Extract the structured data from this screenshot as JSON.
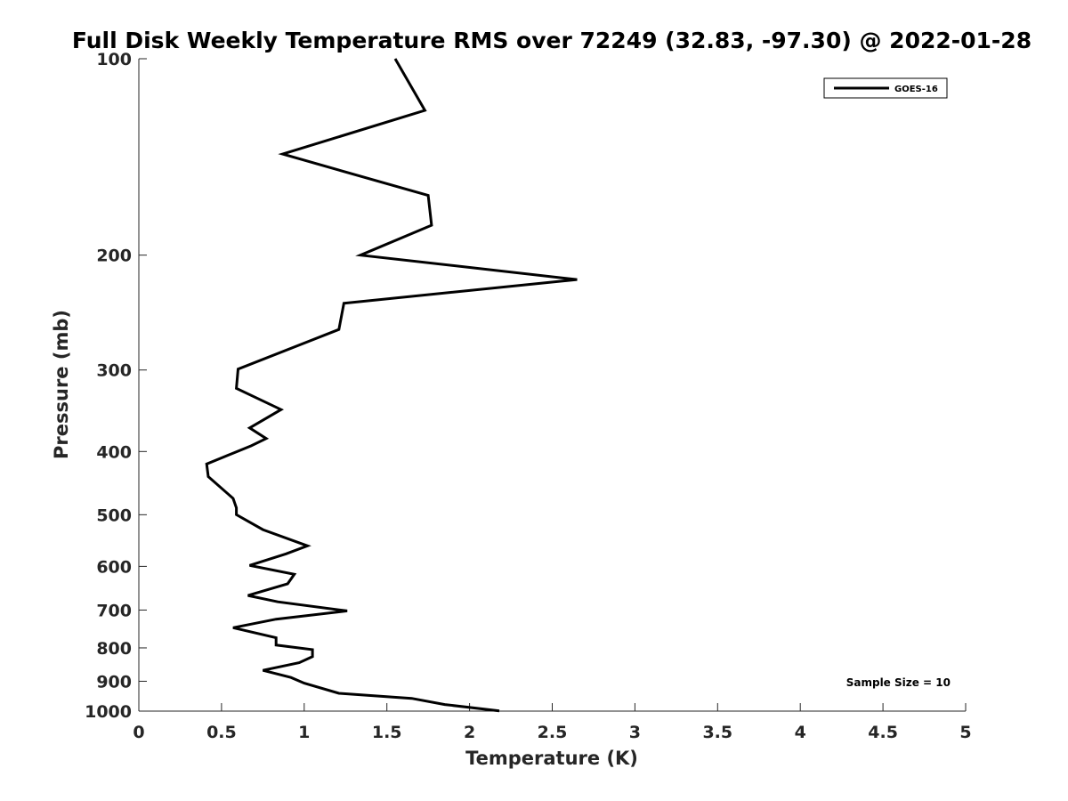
{
  "chart_data": {
    "type": "line",
    "title": "Full Disk Weekly Temperature RMS over 72249 (32.83, -97.30) @ 2022-01-28",
    "xlabel": "Temperature (K)",
    "ylabel": "Pressure (mb)",
    "xlim": [
      0,
      5
    ],
    "ylim": [
      100,
      1000
    ],
    "yscale": "log",
    "y_reversed": true,
    "xticks": [
      "0",
      "0.5",
      "1",
      "1.5",
      "2",
      "2.5",
      "3",
      "3.5",
      "4",
      "4.5",
      "5"
    ],
    "yticks": [
      "100",
      "200",
      "300",
      "400",
      "500",
      "600",
      "700",
      "800",
      "900",
      "1000"
    ],
    "grid": false,
    "legend_position": "top-right",
    "annotation": "Sample Size = 10",
    "colors": {
      "line": "#000000",
      "axis": "#262626"
    },
    "series": [
      {
        "name": "GOES-16",
        "x": [
          1.55,
          1.73,
          0.87,
          1.75,
          1.77,
          1.34,
          2.65,
          1.24,
          1.21,
          0.6,
          0.59,
          0.86,
          0.67,
          0.77,
          0.68,
          0.41,
          0.42,
          0.57,
          0.59,
          0.59,
          0.75,
          1.02,
          0.89,
          0.67,
          0.94,
          0.9,
          0.66,
          0.84,
          1.26,
          0.83,
          0.57,
          0.83,
          0.83,
          1.05,
          1.05,
          0.97,
          0.75,
          0.92,
          1.0,
          1.21,
          1.65,
          1.85,
          2.18
        ],
        "y": [
          100,
          120,
          140,
          162,
          180,
          200,
          218,
          237,
          260,
          299,
          320,
          345,
          368,
          382,
          392,
          418,
          437,
          472,
          488,
          500,
          527,
          558,
          574,
          598,
          617,
          638,
          665,
          680,
          702,
          723,
          745,
          772,
          792,
          805,
          825,
          843,
          866,
          888,
          906,
          939,
          956,
          977,
          999
        ]
      }
    ]
  }
}
